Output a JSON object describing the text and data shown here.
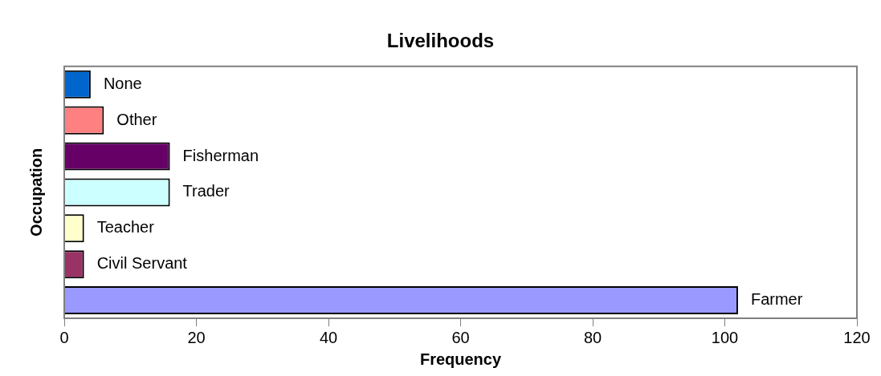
{
  "chart_data": {
    "type": "bar",
    "orientation": "horizontal",
    "title": "Livelihoods",
    "xlabel": "Frequency",
    "ylabel": "Occupation",
    "categories": [
      "None",
      "Other",
      "Fisherman",
      "Trader",
      "Teacher",
      "Civil Servant",
      "Farmer"
    ],
    "values": [
      4,
      6,
      16,
      16,
      3,
      3,
      102
    ],
    "colors": [
      "#0066cc",
      "#ff8080",
      "#660066",
      "#ccffff",
      "#ffffcc",
      "#993366",
      "#9999ff"
    ],
    "xlim": [
      0,
      120
    ],
    "xticks": [
      0,
      20,
      40,
      60,
      80,
      100,
      120
    ],
    "tick_labels": "x",
    "grid": false,
    "legend": false
  }
}
